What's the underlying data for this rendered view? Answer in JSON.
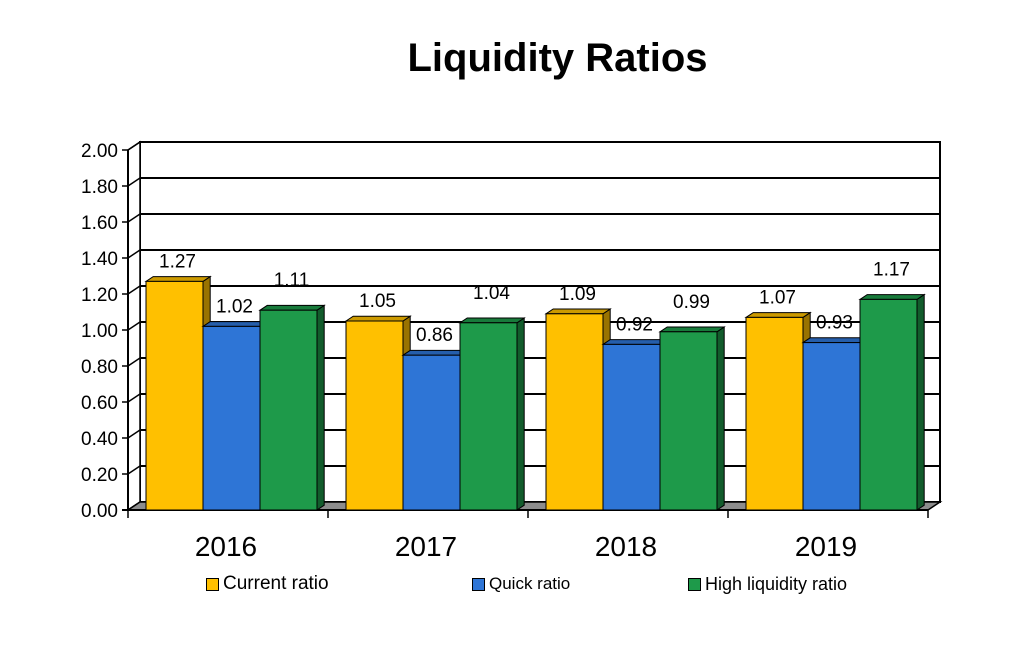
{
  "chart_data": {
    "type": "bar",
    "title": "Liquidity Ratios",
    "categories": [
      "2016",
      "2017",
      "2018",
      "2019"
    ],
    "series": [
      {
        "name": "Current ratio",
        "values": [
          1.27,
          1.05,
          1.09,
          1.07
        ],
        "color": "#FFC000"
      },
      {
        "name": "Quick ratio",
        "values": [
          1.02,
          0.86,
          0.92,
          0.93
        ],
        "color": "#2E75D6"
      },
      {
        "name": "High liquidity ratio",
        "values": [
          1.11,
          1.04,
          0.99,
          1.17
        ],
        "color": "#1E9A4A"
      }
    ],
    "ylim": [
      0,
      2.0
    ],
    "y_ticks": [
      "0.00",
      "0.20",
      "0.40",
      "0.60",
      "0.80",
      "1.00",
      "1.20",
      "1.40",
      "1.60",
      "1.80",
      "2.00"
    ],
    "value_labels": [
      [
        "1.27",
        "1.02",
        "1.11"
      ],
      [
        "1.05",
        "0.86",
        "1.04"
      ],
      [
        "1.09",
        "0.92",
        "0.99"
      ],
      [
        "1.07",
        "0.93",
        "1.17"
      ]
    ],
    "grid": true,
    "legend_position": "bottom"
  }
}
